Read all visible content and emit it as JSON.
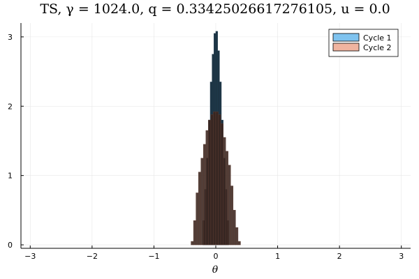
{
  "chart_data": {
    "type": "histogram",
    "title": "TS, γ = 1024.0, q = 0.33425026617276105, u = 0.0",
    "xlabel": "θ",
    "ylabel": "",
    "xlim": [
      -3.15,
      3.15
    ],
    "ylim": [
      -0.05,
      3.2
    ],
    "xticks": [
      -3,
      -2,
      -1,
      0,
      1,
      2,
      3
    ],
    "xtick_labels": [
      "−3",
      "−2",
      "−1",
      "0",
      "1",
      "2",
      "3"
    ],
    "yticks": [
      0,
      1,
      2,
      3
    ],
    "ytick_labels": [
      "0",
      "1",
      "2",
      "3"
    ],
    "grid": true,
    "legend_position": "top-right",
    "series": [
      {
        "name": "Cycle 1",
        "color": "#7fc3ef",
        "edge": "#1e3a4f",
        "bins": [
          {
            "x0": -0.21,
            "x1": -0.18,
            "y": 0.35
          },
          {
            "x0": -0.18,
            "x1": -0.15,
            "y": 0.8
          },
          {
            "x0": -0.15,
            "x1": -0.12,
            "y": 1.25
          },
          {
            "x0": -0.12,
            "x1": -0.09,
            "y": 1.8
          },
          {
            "x0": -0.09,
            "x1": -0.06,
            "y": 2.35
          },
          {
            "x0": -0.06,
            "x1": -0.03,
            "y": 2.75
          },
          {
            "x0": -0.03,
            "x1": 0.0,
            "y": 3.05
          },
          {
            "x0": 0.0,
            "x1": 0.03,
            "y": 3.08
          },
          {
            "x0": 0.03,
            "x1": 0.06,
            "y": 2.8
          },
          {
            "x0": 0.06,
            "x1": 0.09,
            "y": 2.35
          },
          {
            "x0": 0.09,
            "x1": 0.12,
            "y": 1.8
          },
          {
            "x0": 0.12,
            "x1": 0.15,
            "y": 1.25
          },
          {
            "x0": 0.15,
            "x1": 0.18,
            "y": 0.8
          },
          {
            "x0": 0.18,
            "x1": 0.21,
            "y": 0.35
          }
        ]
      },
      {
        "name": "Cycle 2",
        "color": "#f0b4a0",
        "edge": "#5a3a30",
        "bins": [
          {
            "x0": -0.4,
            "x1": -0.36,
            "y": 0.05
          },
          {
            "x0": -0.36,
            "x1": -0.32,
            "y": 0.35
          },
          {
            "x0": -0.32,
            "x1": -0.28,
            "y": 0.75
          },
          {
            "x0": -0.28,
            "x1": -0.24,
            "y": 1.05
          },
          {
            "x0": -0.24,
            "x1": -0.2,
            "y": 1.25
          },
          {
            "x0": -0.2,
            "x1": -0.16,
            "y": 1.45
          },
          {
            "x0": -0.16,
            "x1": -0.12,
            "y": 1.65
          },
          {
            "x0": -0.12,
            "x1": -0.08,
            "y": 1.8
          },
          {
            "x0": -0.08,
            "x1": -0.04,
            "y": 1.88
          },
          {
            "x0": -0.04,
            "x1": 0.0,
            "y": 1.92
          },
          {
            "x0": 0.0,
            "x1": 0.04,
            "y": 1.92
          },
          {
            "x0": 0.04,
            "x1": 0.08,
            "y": 1.88
          },
          {
            "x0": 0.08,
            "x1": 0.12,
            "y": 1.75
          },
          {
            "x0": 0.12,
            "x1": 0.16,
            "y": 1.55
          },
          {
            "x0": 0.16,
            "x1": 0.2,
            "y": 1.35
          },
          {
            "x0": 0.2,
            "x1": 0.24,
            "y": 1.15
          },
          {
            "x0": 0.24,
            "x1": 0.28,
            "y": 0.85
          },
          {
            "x0": 0.28,
            "x1": 0.32,
            "y": 0.5
          },
          {
            "x0": 0.32,
            "x1": 0.36,
            "y": 0.25
          },
          {
            "x0": 0.36,
            "x1": 0.4,
            "y": 0.05
          }
        ]
      }
    ]
  }
}
